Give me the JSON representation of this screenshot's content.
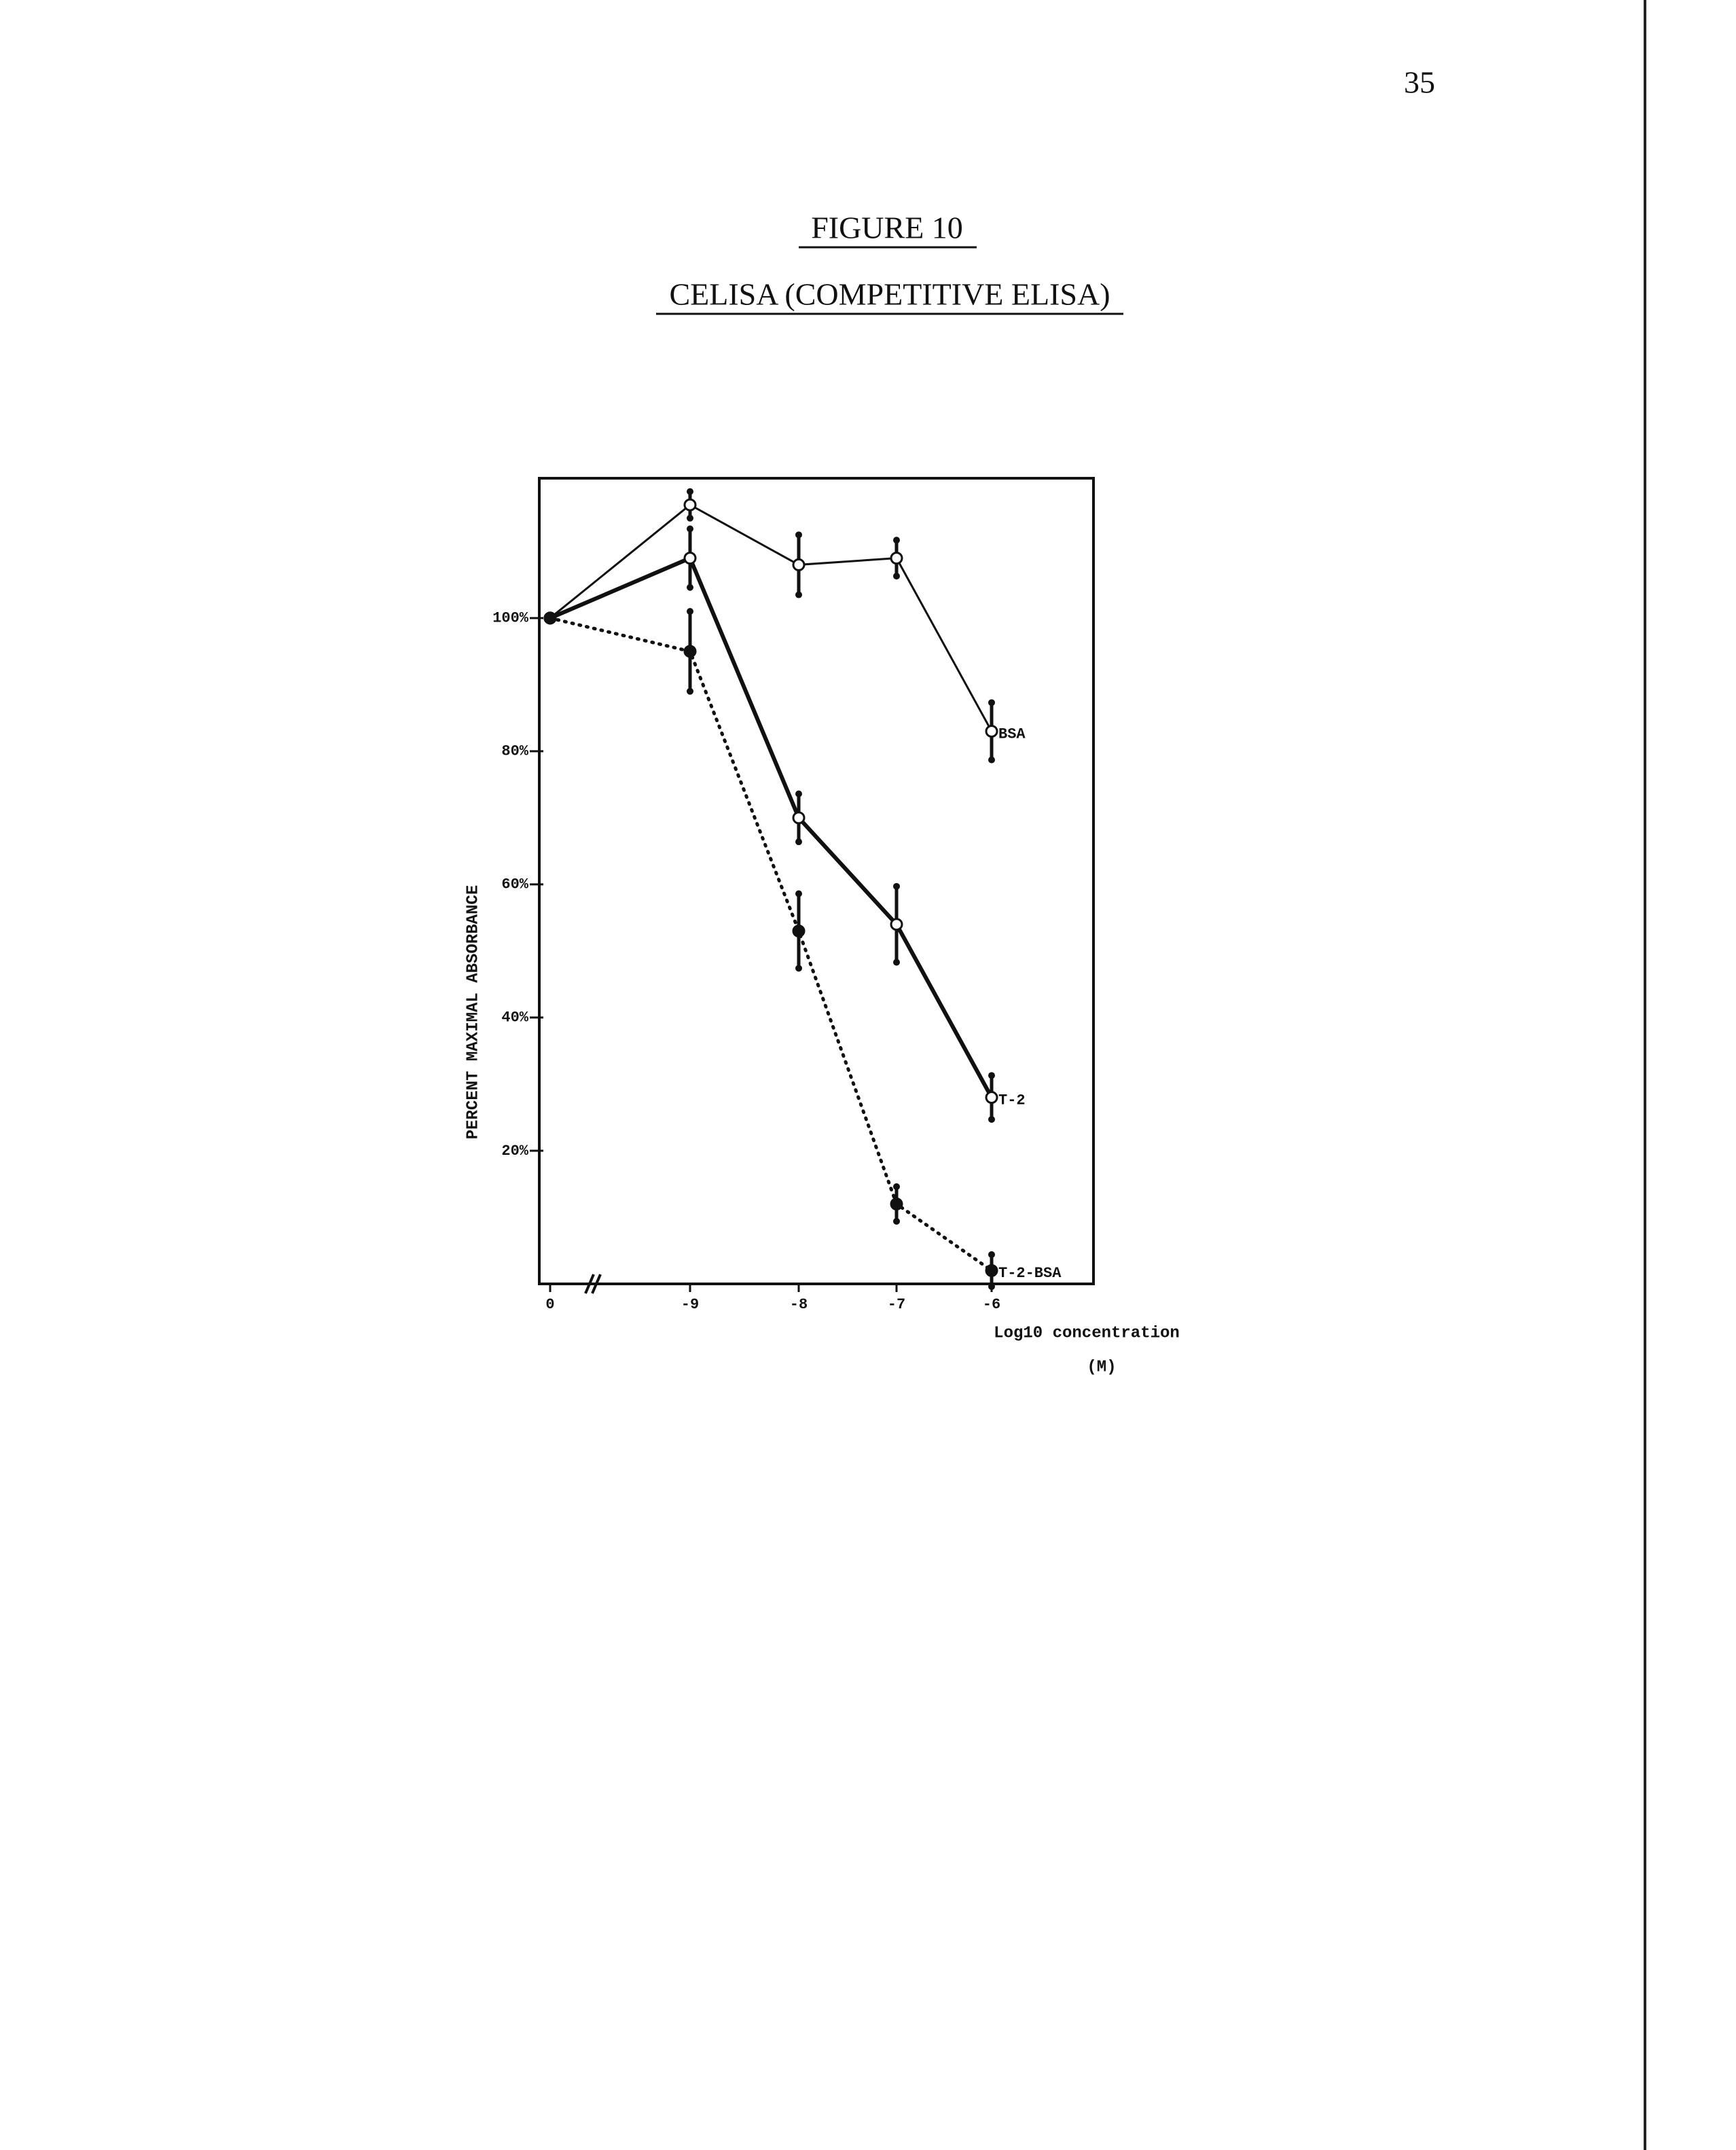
{
  "page_number": "35",
  "figure_label": "FIGURE 10",
  "figure_title": "CELISA (COMPETITIVE ELISA)",
  "chart_data": {
    "type": "line",
    "categories": [
      "0",
      "-9",
      "-8",
      "-7",
      "-6"
    ],
    "y_label": "PERCENT MAXIMAL ABSORBANCE",
    "x_label": "Log10 concentration",
    "x_unit": "(M)",
    "ylim": [
      0,
      121
    ],
    "yticks": [
      {
        "value": 20,
        "label": "20%"
      },
      {
        "value": 40,
        "label": "40%"
      },
      {
        "value": 60,
        "label": "60%"
      },
      {
        "value": 80,
        "label": "80%"
      },
      {
        "value": 100,
        "label": "100%"
      }
    ],
    "series": [
      {
        "name": "BSA",
        "color": "#111111",
        "line_style": "solid",
        "line_width": 3,
        "marker": "open",
        "values": [
          100,
          117,
          108,
          109,
          83
        ],
        "errors": [
          null,
          2,
          4.5,
          2.7,
          4.3
        ]
      },
      {
        "name": "T-2",
        "color": "#111111",
        "line_style": "solid",
        "line_width": 6,
        "marker": "open",
        "values": [
          100,
          109,
          70,
          54,
          28
        ],
        "errors": [
          null,
          4.4,
          3.6,
          5.7,
          3.3
        ]
      },
      {
        "name": "T-2-BSA",
        "color": "#111111",
        "line_style": "dotted",
        "line_width": 5,
        "marker": "filled",
        "values": [
          100,
          95,
          53,
          12,
          2
        ],
        "errors": [
          null,
          6,
          5.6,
          2.6,
          2.4
        ]
      }
    ]
  }
}
